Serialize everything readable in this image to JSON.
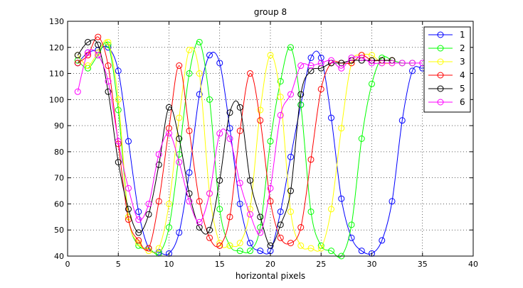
{
  "chart_data": {
    "type": "line",
    "title": "group 8",
    "xlabel": "horizontal pixels",
    "ylabel": "",
    "xlim": [
      0,
      40
    ],
    "ylim": [
      40,
      130
    ],
    "xticks": [
      0,
      5,
      10,
      15,
      20,
      25,
      30,
      35,
      40
    ],
    "yticks": [
      40,
      50,
      60,
      70,
      80,
      90,
      100,
      110,
      120,
      130
    ],
    "grid": true,
    "grid_style": "dotted",
    "legend_position": "top-right",
    "marker": "circle",
    "series": [
      {
        "name": "1",
        "color": "#0000ff",
        "x": [
          1,
          2,
          3,
          4,
          5,
          6,
          7,
          8,
          9,
          10,
          11,
          12,
          13,
          14,
          15,
          16,
          17,
          18,
          19,
          20,
          21,
          22,
          23,
          24,
          25,
          26,
          27,
          28,
          29,
          30,
          31,
          32,
          33,
          34,
          35,
          36
        ],
        "y": [
          114,
          118,
          119,
          120,
          111,
          84,
          57,
          43,
          41.5,
          41,
          49,
          72,
          102,
          117,
          114,
          89,
          60,
          45,
          42,
          42,
          57,
          78,
          98,
          116,
          116,
          93,
          62,
          47,
          42,
          41,
          46,
          61,
          92,
          111,
          112,
          113
        ]
      },
      {
        "name": "2",
        "color": "#00ff00",
        "x": [
          1,
          2,
          3,
          4,
          5,
          6,
          7,
          8,
          9,
          10,
          11,
          12,
          13,
          14,
          15,
          16,
          17,
          18,
          19,
          20,
          21,
          22,
          23,
          24,
          25,
          26,
          27,
          28,
          29,
          30,
          31,
          32,
          33,
          34
        ],
        "y": [
          115,
          112,
          117,
          121,
          96,
          55,
          44,
          43,
          41,
          51,
          79,
          110,
          122,
          100,
          58,
          44,
          42,
          42,
          51,
          84,
          107,
          120,
          98,
          57,
          44,
          42,
          40,
          52,
          85,
          106,
          116,
          115,
          114,
          114
        ]
      },
      {
        "name": "3",
        "color": "#ffff00",
        "x": [
          1,
          2,
          3,
          4,
          5,
          6,
          7,
          8,
          9,
          10,
          11,
          12,
          13,
          14,
          15,
          16,
          17,
          18,
          19,
          20,
          21,
          22,
          23,
          24,
          25,
          26,
          27,
          28,
          29,
          30,
          31,
          32
        ],
        "y": [
          117,
          113,
          118,
          122,
          100,
          55,
          45,
          42,
          43,
          60,
          93,
          119,
          110,
          64,
          45,
          44,
          45,
          58,
          96,
          117,
          101,
          57,
          44,
          43,
          43,
          58,
          89,
          114,
          117,
          117,
          114,
          114
        ]
      },
      {
        "name": "4",
        "color": "#ff0000",
        "x": [
          1,
          2,
          3,
          4,
          5,
          6,
          7,
          8,
          9,
          10,
          11,
          12,
          13,
          14,
          15,
          16,
          17,
          18,
          19,
          20,
          21,
          22,
          23,
          24,
          25,
          26,
          27,
          28,
          29,
          30,
          31,
          32
        ],
        "y": [
          114,
          117,
          124,
          113,
          83,
          54,
          46,
          43,
          61,
          89,
          113,
          88,
          61,
          47,
          44,
          55,
          88,
          110,
          92,
          61,
          47,
          45,
          51,
          77,
          104,
          114,
          114,
          114,
          117,
          115,
          115,
          115
        ]
      },
      {
        "name": "5",
        "color": "#000000",
        "x": [
          1,
          2,
          3,
          4,
          5,
          6,
          7,
          8,
          9,
          10,
          11,
          12,
          13,
          14,
          15,
          16,
          17,
          18,
          19,
          20,
          21,
          22,
          23,
          24,
          25,
          26,
          27,
          28,
          29,
          30,
          31,
          32
        ],
        "y": [
          117,
          122,
          121,
          103,
          76,
          58,
          49,
          56,
          75,
          97,
          85,
          64,
          51,
          50,
          69,
          95,
          97,
          69,
          55,
          44,
          52,
          65,
          102,
          111,
          112,
          114,
          114,
          115,
          115,
          115,
          115,
          115
        ]
      },
      {
        "name": "6",
        "color": "#ff00ff",
        "x": [
          1,
          2,
          3,
          4,
          5,
          6,
          7,
          8,
          9,
          10,
          11,
          12,
          13,
          14,
          15,
          16,
          17,
          18,
          19,
          20,
          21,
          22,
          23,
          24,
          25,
          26,
          27,
          28,
          29,
          30,
          31,
          32,
          33,
          34,
          35
        ],
        "y": [
          103,
          118,
          117,
          107,
          84,
          66,
          54,
          60,
          79,
          87,
          76,
          61,
          53,
          64,
          87,
          85,
          68,
          56,
          49,
          66,
          94,
          102,
          113,
          113,
          114,
          115,
          112,
          116,
          116,
          114,
          114,
          114,
          114,
          114,
          114
        ]
      }
    ]
  }
}
